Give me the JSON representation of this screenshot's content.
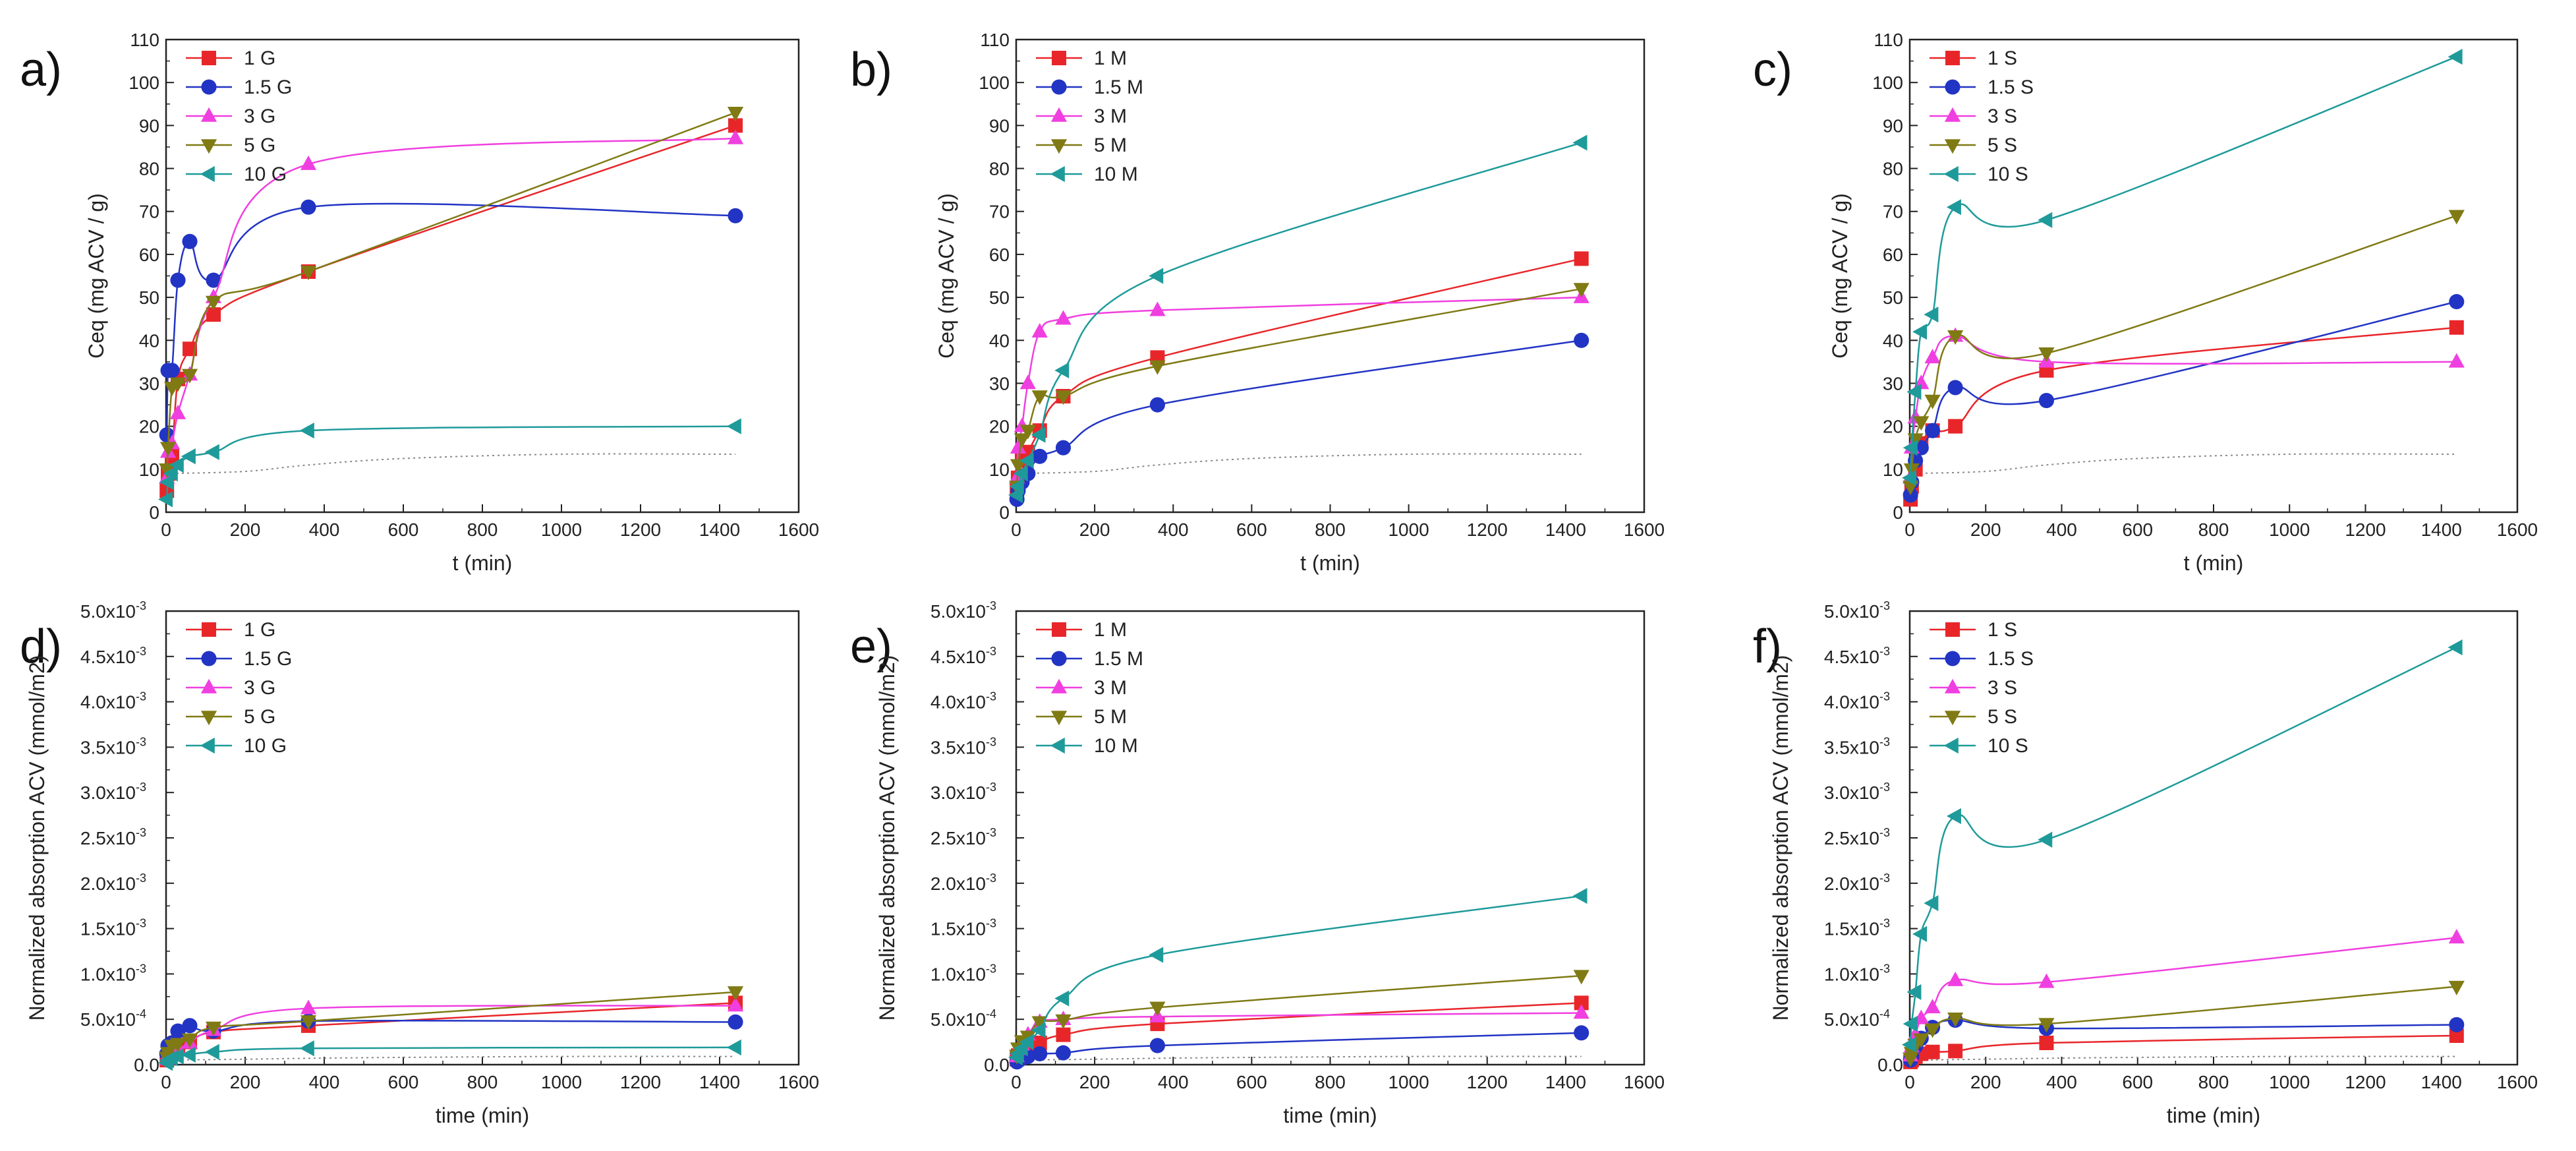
{
  "figure": {
    "description_free": true
  },
  "colors": {
    "1": "#e8262a",
    "1.5": "#2234c4",
    "3": "#f03fe0",
    "5": "#7f7a14",
    "10": "#1f9a9a",
    "reference": "#8a8a8a"
  },
  "chart_data": [
    {
      "panel": "a)",
      "type": "scatter",
      "xlabel": "t (min)",
      "ylabel": "Ceq (mg ACV / g)",
      "xlim": [
        0,
        1600
      ],
      "ylim": [
        0,
        110
      ],
      "xticks": [
        "0",
        "200",
        "400",
        "600",
        "800",
        "1000",
        "1200",
        "1400",
        "1600"
      ],
      "yticks": [
        "0",
        "10",
        "20",
        "30",
        "40",
        "50",
        "60",
        "70",
        "80",
        "90",
        "100",
        "110"
      ],
      "series": [
        {
          "name": "1 G",
          "key": "1",
          "marker": "square",
          "x": [
            2,
            5,
            15,
            30,
            60,
            120,
            360,
            1440
          ],
          "y": [
            5,
            9,
            13,
            31,
            38,
            46,
            56,
            90
          ]
        },
        {
          "name": "1.5 G",
          "key": "1.5",
          "marker": "circle",
          "x": [
            2,
            5,
            15,
            30,
            60,
            120,
            360,
            1440
          ],
          "y": [
            18,
            33,
            33,
            54,
            63,
            54,
            71,
            69
          ]
        },
        {
          "name": "3 G",
          "key": "3",
          "marker": "triangle-up",
          "x": [
            2,
            5,
            15,
            30,
            60,
            120,
            360,
            1440
          ],
          "y": [
            8,
            14,
            16,
            23,
            32,
            50,
            81,
            87
          ]
        },
        {
          "name": "5 G",
          "key": "5",
          "marker": "triangle-down",
          "x": [
            2,
            5,
            15,
            30,
            60,
            120,
            360,
            1440
          ],
          "y": [
            10,
            15,
            29,
            30,
            32,
            49,
            56,
            93
          ]
        },
        {
          "name": "10 G",
          "key": "10",
          "marker": "triangle-left",
          "x": [
            2,
            5,
            15,
            30,
            60,
            120,
            360,
            1440
          ],
          "y": [
            3,
            7,
            9,
            11,
            13,
            14,
            19,
            20
          ]
        }
      ],
      "reference_line": {
        "x": [
          0,
          200,
          360,
          600,
          1000,
          1440
        ],
        "y": [
          9,
          9.5,
          11,
          12.5,
          13.5,
          13.5
        ]
      }
    },
    {
      "panel": "b)",
      "type": "scatter",
      "xlabel": "t (min)",
      "ylabel": "Ceq (mg ACV / g)",
      "xlim": [
        0,
        1600
      ],
      "ylim": [
        0,
        110
      ],
      "xticks": [
        "0",
        "200",
        "400",
        "600",
        "800",
        "1000",
        "1200",
        "1400",
        "1600"
      ],
      "yticks": [
        "0",
        "10",
        "20",
        "30",
        "40",
        "50",
        "60",
        "70",
        "80",
        "90",
        "100",
        "110"
      ],
      "series": [
        {
          "name": "1 M",
          "key": "1",
          "marker": "square",
          "x": [
            2,
            5,
            15,
            30,
            60,
            120,
            360,
            1440
          ],
          "y": [
            5,
            8,
            12,
            14,
            19,
            27,
            36,
            59
          ]
        },
        {
          "name": "1.5 M",
          "key": "1.5",
          "marker": "circle",
          "x": [
            2,
            5,
            15,
            30,
            60,
            120,
            360,
            1440
          ],
          "y": [
            3,
            5,
            7,
            9,
            13,
            15,
            25,
            40
          ]
        },
        {
          "name": "3 M",
          "key": "3",
          "marker": "triangle-up",
          "x": [
            2,
            5,
            15,
            30,
            60,
            120,
            360,
            1440
          ],
          "y": [
            8,
            15,
            20,
            30,
            42,
            45,
            47,
            50
          ]
        },
        {
          "name": "5 M",
          "key": "5",
          "marker": "triangle-down",
          "x": [
            2,
            5,
            15,
            30,
            60,
            120,
            360,
            1440
          ],
          "y": [
            6,
            11,
            17,
            19,
            27,
            27,
            34,
            52
          ]
        },
        {
          "name": "10 M",
          "key": "10",
          "marker": "triangle-left",
          "x": [
            2,
            5,
            15,
            30,
            60,
            120,
            360,
            1440
          ],
          "y": [
            4,
            6,
            9,
            12,
            18,
            33,
            55,
            86
          ]
        }
      ],
      "reference_line": {
        "x": [
          0,
          200,
          360,
          600,
          1000,
          1440
        ],
        "y": [
          9,
          9.5,
          11,
          12.5,
          13.5,
          13.5
        ]
      }
    },
    {
      "panel": "c)",
      "type": "scatter",
      "xlabel": "t (min)",
      "ylabel": "Ceq (mg ACV / g)",
      "xlim": [
        0,
        1600
      ],
      "ylim": [
        0,
        110
      ],
      "xticks": [
        "0",
        "200",
        "400",
        "600",
        "800",
        "1000",
        "1200",
        "1400",
        "1600"
      ],
      "yticks": [
        "0",
        "10",
        "20",
        "30",
        "40",
        "50",
        "60",
        "70",
        "80",
        "90",
        "100",
        "110"
      ],
      "series": [
        {
          "name": "1 S",
          "key": "1",
          "marker": "square",
          "x": [
            2,
            5,
            15,
            30,
            60,
            120,
            360,
            1440
          ],
          "y": [
            3,
            6,
            10,
            16,
            19,
            20,
            33,
            43
          ]
        },
        {
          "name": "1.5 S",
          "key": "1.5",
          "marker": "circle",
          "x": [
            2,
            5,
            15,
            30,
            60,
            120,
            360,
            1440
          ],
          "y": [
            4,
            7,
            12,
            15,
            19,
            29,
            26,
            49
          ]
        },
        {
          "name": "3 S",
          "key": "3",
          "marker": "triangle-up",
          "x": [
            2,
            5,
            15,
            30,
            60,
            120,
            360,
            1440
          ],
          "y": [
            8,
            15,
            22,
            30,
            36,
            41,
            35,
            35
          ]
        },
        {
          "name": "5 S",
          "key": "5",
          "marker": "triangle-down",
          "x": [
            2,
            5,
            15,
            30,
            60,
            120,
            360,
            1440
          ],
          "y": [
            6,
            10,
            17,
            21,
            26,
            41,
            37,
            69
          ]
        },
        {
          "name": "10 S",
          "key": "10",
          "marker": "triangle-left",
          "x": [
            2,
            5,
            15,
            30,
            60,
            120,
            360,
            1440
          ],
          "y": [
            8,
            15,
            28,
            42,
            46,
            71,
            68,
            106
          ]
        }
      ],
      "reference_line": {
        "x": [
          0,
          200,
          360,
          600,
          1000,
          1440
        ],
        "y": [
          9,
          9.5,
          11,
          12.5,
          13.5,
          13.5
        ]
      }
    },
    {
      "panel": "d)",
      "type": "scatter",
      "xlabel": "time (min)",
      "ylabel": "Normalized absorption ACV (mmol/m2)",
      "xlim": [
        0,
        1600
      ],
      "ylim": [
        0,
        5.0
      ],
      "y_exponent": -3,
      "xticks": [
        "0",
        "200",
        "400",
        "600",
        "800",
        "1000",
        "1200",
        "1400",
        "1600"
      ],
      "yticks": [
        "0.0",
        "5.0x10",
        "1.0x10",
        "1.5x10",
        "2.0x10",
        "2.5x10",
        "3.0x10",
        "3.5x10",
        "4.0x10",
        "4.5x10",
        "5.0x10"
      ],
      "yticks_exp": [
        "",
        "-4",
        "-3",
        "-3",
        "-3",
        "-3",
        "-3",
        "-3",
        "-3",
        "-3",
        "-3"
      ],
      "series": [
        {
          "name": "1 G",
          "key": "1",
          "marker": "square",
          "x": [
            2,
            5,
            15,
            30,
            60,
            120,
            360,
            1440
          ],
          "y": [
            0.05,
            0.09,
            0.14,
            0.21,
            0.25,
            0.36,
            0.43,
            0.68
          ]
        },
        {
          "name": "1.5 G",
          "key": "1.5",
          "marker": "circle",
          "x": [
            2,
            5,
            15,
            30,
            60,
            120,
            360,
            1440
          ],
          "y": [
            0.12,
            0.21,
            0.24,
            0.37,
            0.43,
            0.37,
            0.48,
            0.47
          ]
        },
        {
          "name": "3 G",
          "key": "3",
          "marker": "triangle-up",
          "x": [
            2,
            5,
            15,
            30,
            60,
            120,
            360,
            1440
          ],
          "y": [
            0.06,
            0.11,
            0.13,
            0.17,
            0.24,
            0.38,
            0.62,
            0.65
          ]
        },
        {
          "name": "5 G",
          "key": "5",
          "marker": "triangle-down",
          "x": [
            2,
            5,
            15,
            30,
            60,
            120,
            360,
            1440
          ],
          "y": [
            0.08,
            0.13,
            0.21,
            0.23,
            0.28,
            0.41,
            0.48,
            0.8
          ]
        },
        {
          "name": "10 G",
          "key": "10",
          "marker": "triangle-left",
          "x": [
            2,
            5,
            15,
            30,
            60,
            120,
            360,
            1440
          ],
          "y": [
            0.02,
            0.05,
            0.07,
            0.09,
            0.11,
            0.14,
            0.18,
            0.19
          ]
        }
      ],
      "reference_line": {
        "x": [
          0,
          200,
          360,
          600,
          1000,
          1440
        ],
        "y": [
          0.05,
          0.06,
          0.07,
          0.08,
          0.09,
          0.09
        ]
      }
    },
    {
      "panel": "e)",
      "type": "scatter",
      "xlabel": "time (min)",
      "ylabel": "Normalized absorption ACV (mmol/m2)",
      "xlim": [
        0,
        1600
      ],
      "ylim": [
        0,
        5.0
      ],
      "y_exponent": -3,
      "xticks": [
        "0",
        "200",
        "400",
        "600",
        "800",
        "1000",
        "1200",
        "1400",
        "1600"
      ],
      "yticks": [
        "0.0",
        "5.0x10",
        "1.0x10",
        "1.5x10",
        "2.0x10",
        "2.5x10",
        "3.0x10",
        "3.5x10",
        "4.0x10",
        "4.5x10",
        "5.0x10"
      ],
      "yticks_exp": [
        "",
        "-4",
        "-3",
        "-3",
        "-3",
        "-3",
        "-3",
        "-3",
        "-3",
        "-3",
        "-3"
      ],
      "series": [
        {
          "name": "1 M",
          "key": "1",
          "marker": "square",
          "x": [
            2,
            5,
            15,
            30,
            60,
            120,
            360,
            1440
          ],
          "y": [
            0.06,
            0.1,
            0.15,
            0.18,
            0.24,
            0.33,
            0.45,
            0.68
          ]
        },
        {
          "name": "1.5 M",
          "key": "1.5",
          "marker": "circle",
          "x": [
            2,
            5,
            15,
            30,
            60,
            120,
            360,
            1440
          ],
          "y": [
            0.03,
            0.05,
            0.07,
            0.09,
            0.12,
            0.13,
            0.21,
            0.35
          ]
        },
        {
          "name": "3 M",
          "key": "3",
          "marker": "triangle-up",
          "x": [
            2,
            5,
            15,
            30,
            60,
            120,
            360,
            1440
          ],
          "y": [
            0.09,
            0.17,
            0.22,
            0.33,
            0.47,
            0.5,
            0.53,
            0.57
          ]
        },
        {
          "name": "5 M",
          "key": "5",
          "marker": "triangle-down",
          "x": [
            2,
            5,
            15,
            30,
            60,
            120,
            360,
            1440
          ],
          "y": [
            0.1,
            0.18,
            0.26,
            0.31,
            0.47,
            0.49,
            0.63,
            0.98
          ]
        },
        {
          "name": "10 M",
          "key": "10",
          "marker": "triangle-left",
          "x": [
            2,
            5,
            15,
            30,
            60,
            120,
            360,
            1440
          ],
          "y": [
            0.08,
            0.12,
            0.18,
            0.25,
            0.38,
            0.73,
            1.21,
            1.86
          ]
        }
      ],
      "reference_line": {
        "x": [
          0,
          200,
          360,
          600,
          1000,
          1440
        ],
        "y": [
          0.05,
          0.06,
          0.07,
          0.08,
          0.09,
          0.09
        ]
      }
    },
    {
      "panel": "f)",
      "type": "scatter",
      "xlabel": "time (min)",
      "ylabel": "Normalized absorption ACV (mmol/m2)",
      "xlim": [
        0,
        1600
      ],
      "ylim": [
        0,
        5.0
      ],
      "y_exponent": -3,
      "xticks": [
        "0",
        "200",
        "400",
        "600",
        "800",
        "1000",
        "1200",
        "1400",
        "1600"
      ],
      "yticks": [
        "0.0",
        "5.0x10",
        "1.0x10",
        "1.5x10",
        "2.0x10",
        "2.5x10",
        "3.0x10",
        "3.5x10",
        "4.0x10",
        "4.5x10",
        "5.0x10"
      ],
      "yticks_exp": [
        "",
        "-4",
        "-3",
        "-3",
        "-3",
        "-3",
        "-3",
        "-3",
        "-3",
        "-3",
        "-3"
      ],
      "series": [
        {
          "name": "1 S",
          "key": "1",
          "marker": "square",
          "x": [
            2,
            5,
            15,
            30,
            60,
            120,
            360,
            1440
          ],
          "y": [
            0.03,
            0.05,
            0.09,
            0.12,
            0.14,
            0.15,
            0.24,
            0.32
          ]
        },
        {
          "name": "1.5 S",
          "key": "1.5",
          "marker": "circle",
          "x": [
            2,
            5,
            15,
            30,
            60,
            120,
            360,
            1440
          ],
          "y": [
            0.05,
            0.09,
            0.2,
            0.29,
            0.41,
            0.49,
            0.4,
            0.44
          ]
        },
        {
          "name": "3 S",
          "key": "3",
          "marker": "triangle-up",
          "x": [
            2,
            5,
            15,
            30,
            60,
            120,
            360,
            1440
          ],
          "y": [
            0.1,
            0.2,
            0.33,
            0.51,
            0.63,
            0.93,
            0.91,
            1.4
          ]
        },
        {
          "name": "5 S",
          "key": "5",
          "marker": "triangle-down",
          "x": [
            2,
            5,
            15,
            30,
            60,
            120,
            360,
            1440
          ],
          "y": [
            0.07,
            0.13,
            0.22,
            0.28,
            0.39,
            0.51,
            0.45,
            0.86
          ]
        },
        {
          "name": "10 S",
          "key": "10",
          "marker": "triangle-left",
          "x": [
            2,
            5,
            15,
            30,
            60,
            120,
            360,
            1440
          ],
          "y": [
            0.22,
            0.45,
            0.8,
            1.44,
            1.78,
            2.74,
            2.48,
            4.6
          ]
        }
      ],
      "reference_line": {
        "x": [
          0,
          200,
          360,
          600,
          1000,
          1440
        ],
        "y": [
          0.05,
          0.06,
          0.07,
          0.08,
          0.09,
          0.09
        ]
      }
    }
  ]
}
